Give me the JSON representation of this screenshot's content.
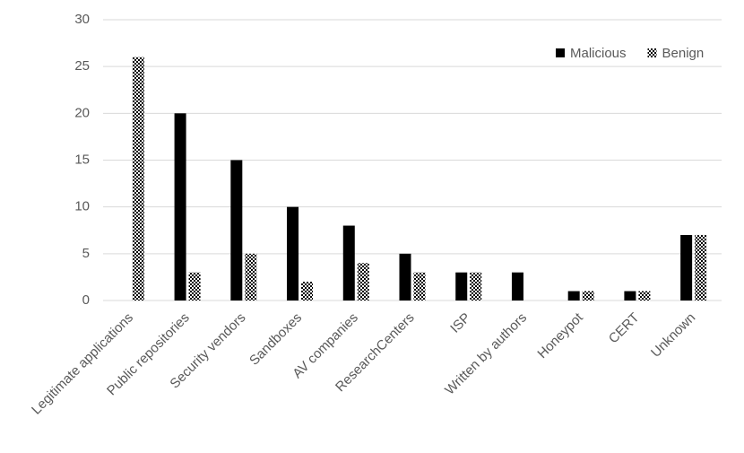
{
  "chart_data": {
    "type": "bar",
    "categories": [
      "Legitimate applications",
      "Public repositories",
      "Security vendors",
      "Sandboxes",
      "AV companies",
      "ResearchCenters",
      "ISP",
      "Written by authors",
      "Honeypot",
      "CERT",
      "Unknown"
    ],
    "series": [
      {
        "name": "Malicious",
        "color": "#000000",
        "values": [
          0,
          20,
          15,
          10,
          8,
          5,
          3,
          3,
          1,
          1,
          7
        ]
      },
      {
        "name": "Benign",
        "color": "#000000",
        "pattern": "checker",
        "values": [
          26,
          3,
          5,
          2,
          4,
          3,
          3,
          0,
          1,
          1,
          7
        ]
      }
    ],
    "ylim": [
      0,
      30
    ],
    "yticks": [
      0,
      5,
      10,
      15,
      20,
      25,
      30
    ],
    "grid": true,
    "legend": "top-right"
  }
}
